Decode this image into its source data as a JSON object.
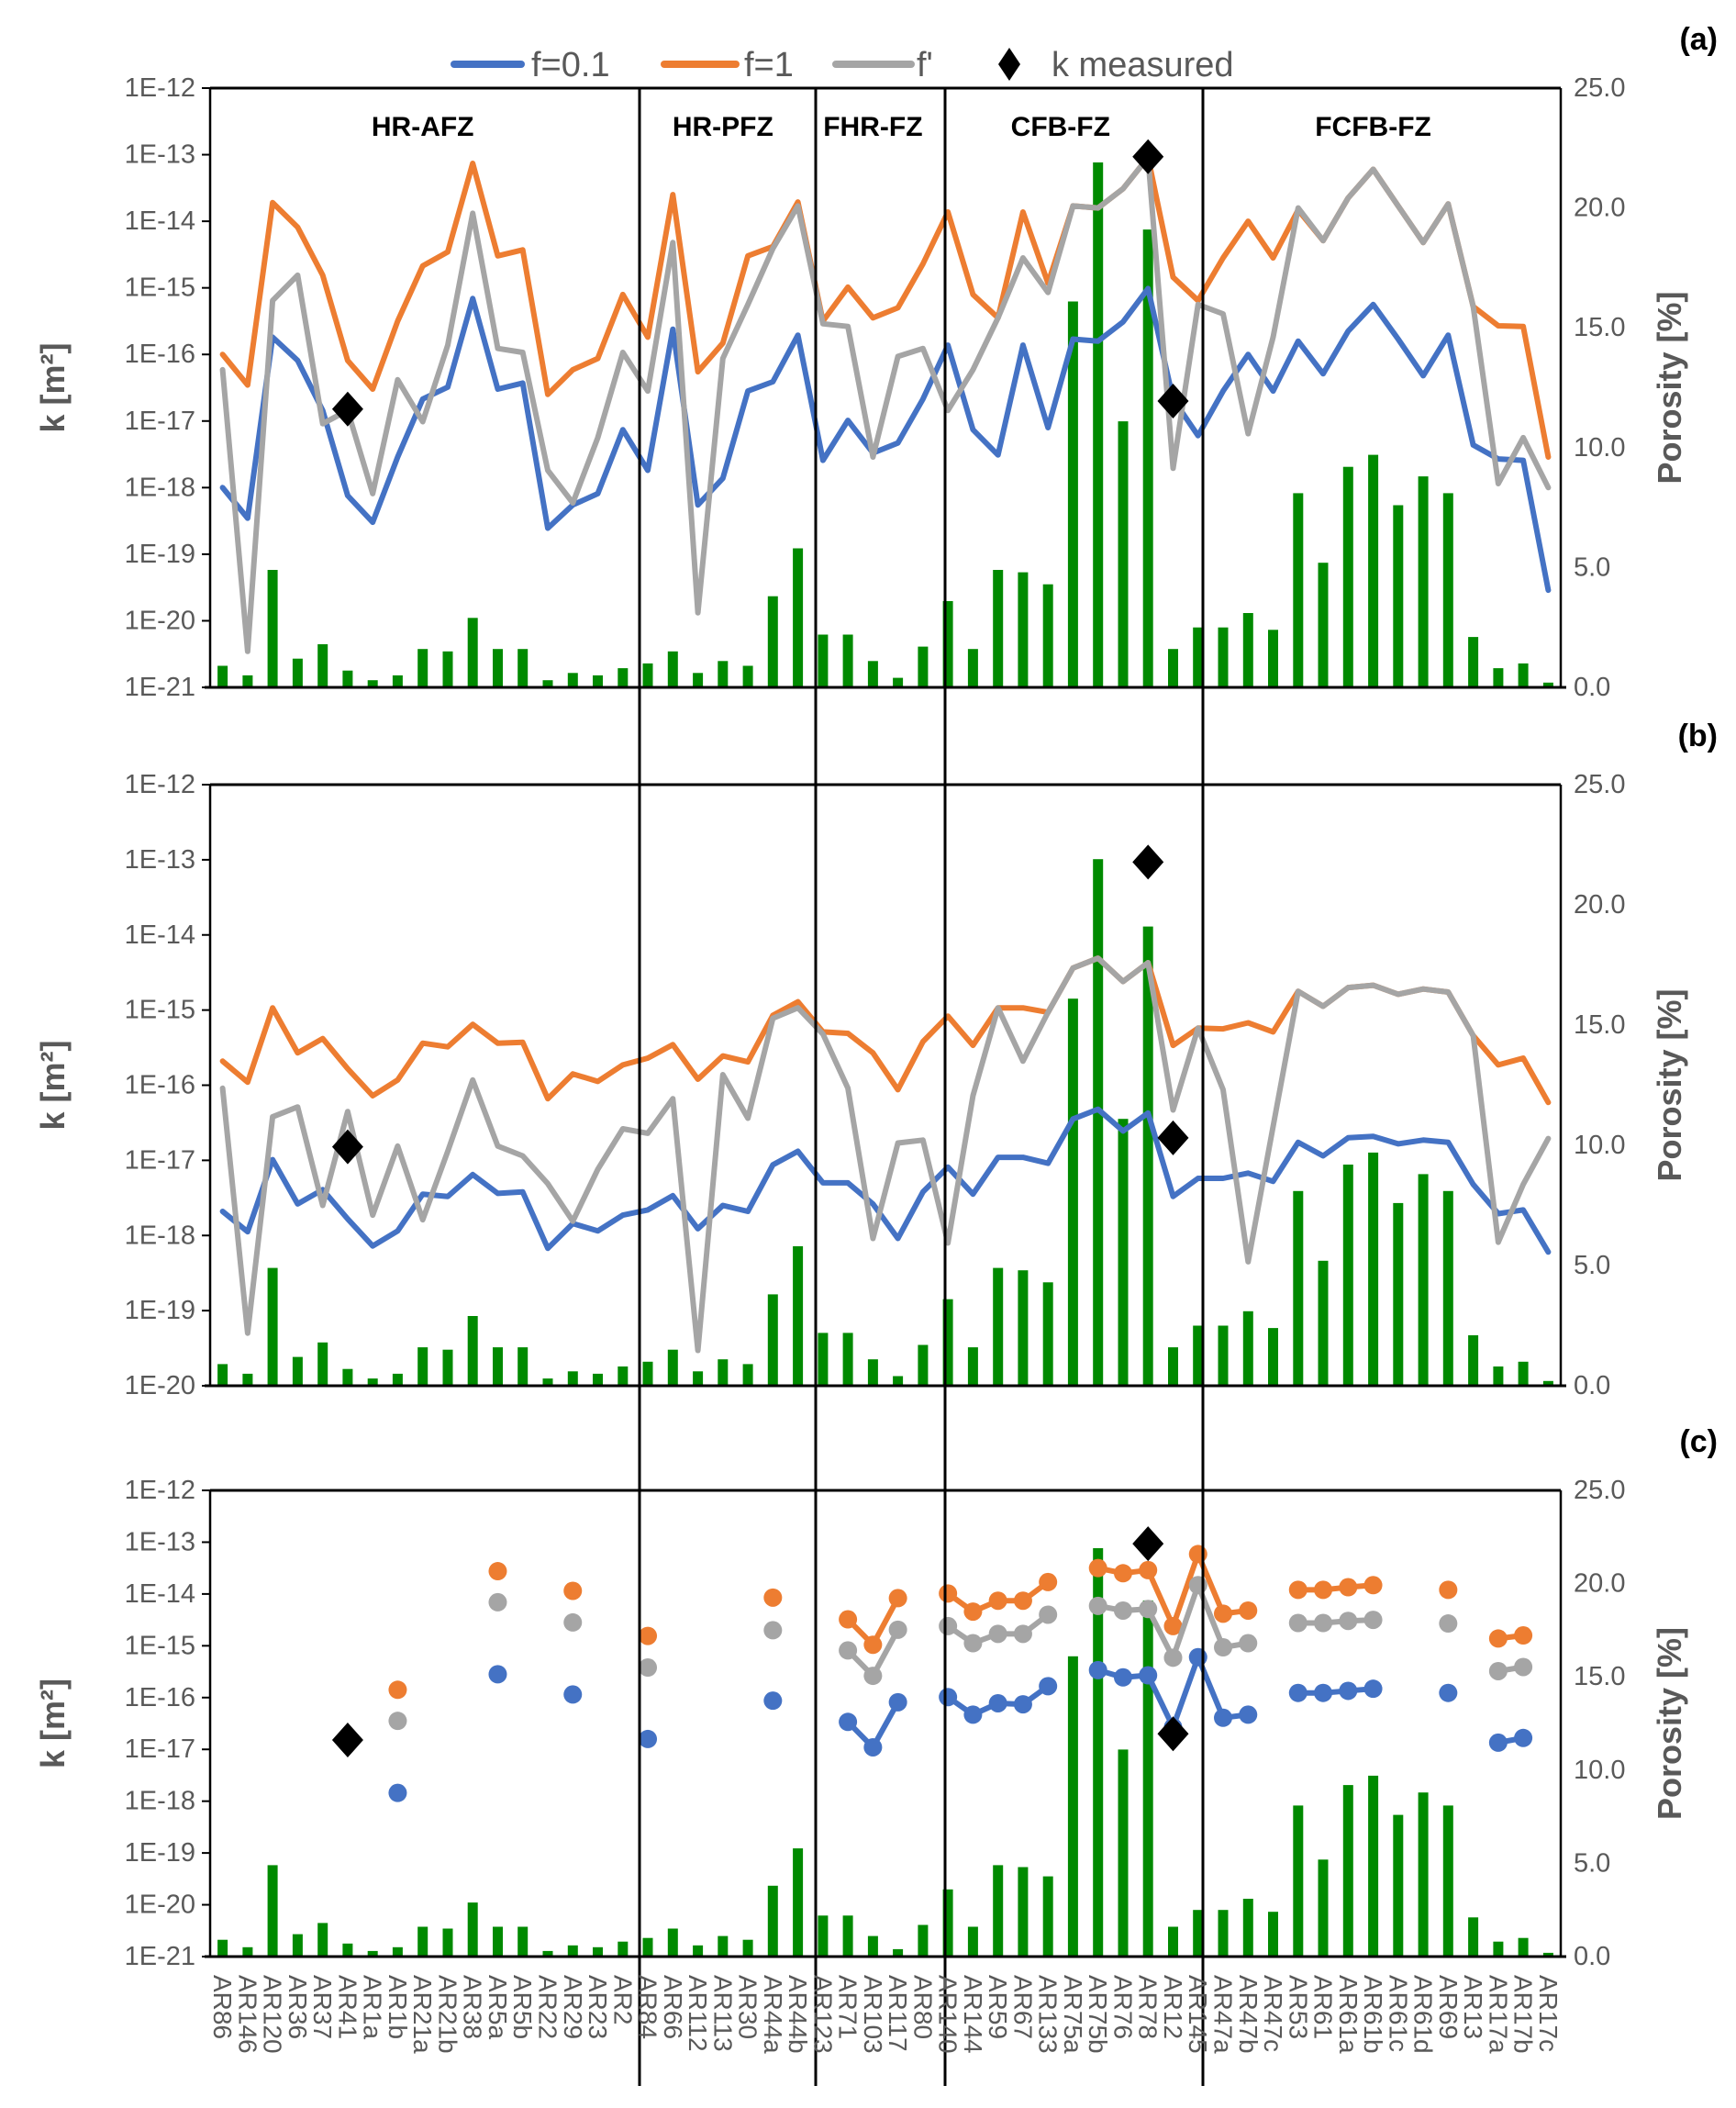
{
  "chart_data": {
    "type": "line",
    "colors": {
      "f01": "#4472C4",
      "f1": "#ED7D31",
      "fprime": "#A5A5A5",
      "porosity": "#008A00",
      "measured": "#000000"
    },
    "legend": [
      {
        "key": "f01",
        "label": "f=0.1"
      },
      {
        "key": "f1",
        "label": "f=1"
      },
      {
        "key": "fprime",
        "label": "f'"
      },
      {
        "key": "measured",
        "label": "k measured"
      }
    ],
    "categories": [
      "AR86",
      "AR146",
      "AR120",
      "AR36",
      "AR37",
      "AR41",
      "AR1a",
      "AR1b",
      "AR21a",
      "AR21b",
      "AR38",
      "AR5a",
      "AR5b",
      "AR22",
      "AR29",
      "AR23",
      "AR2",
      "AR84",
      "AR66",
      "AR112",
      "AR113",
      "AR30",
      "AR44a",
      "AR44b",
      "AR123",
      "AR71",
      "AR103",
      "AR117",
      "AR80",
      "AR140",
      "AR144",
      "AR59",
      "AR67",
      "AR133",
      "AR75a",
      "AR75b",
      "AR76",
      "AR78",
      "AR12",
      "AR145",
      "AR47a",
      "AR47b",
      "AR47c",
      "AR53",
      "AR61",
      "AR61a",
      "AR61b",
      "AR61c",
      "AR61d",
      "AR69",
      "AR13",
      "AR17a",
      "AR17b",
      "AR17c"
    ],
    "zones": [
      {
        "name": "HR-AFZ",
        "start": 0,
        "end": 16
      },
      {
        "name": "HR-PFZ",
        "start": 17,
        "end": 23
      },
      {
        "name": "FHR-FZ",
        "start": 24,
        "end": 28
      },
      {
        "name": "CFB-FZ",
        "start": 29,
        "end": 38
      },
      {
        "name": "FCFB-FZ",
        "start": 39,
        "end": 53
      }
    ],
    "ylabel": "k [m²]",
    "porosity": {
      "ylabel": "Porosity [%]",
      "ylim": [
        0,
        25
      ],
      "ticks": [
        "0.0",
        "5.0",
        "10.0",
        "15.0",
        "20.0",
        "25.0"
      ],
      "values": [
        0.9,
        0.5,
        4.9,
        1.2,
        1.8,
        0.7,
        0.3,
        0.5,
        1.6,
        1.5,
        2.9,
        1.6,
        1.6,
        0.3,
        0.6,
        0.5,
        0.8,
        1.0,
        1.5,
        0.6,
        1.1,
        0.9,
        3.8,
        5.8,
        2.2,
        2.2,
        1.1,
        0.4,
        1.7,
        3.6,
        1.6,
        4.9,
        4.8,
        4.3,
        16.1,
        21.9,
        11.1,
        19.1,
        1.6,
        2.5,
        2.5,
        3.1,
        2.4,
        8.1,
        5.2,
        9.2,
        9.7,
        7.6,
        8.8,
        8.1,
        2.1,
        0.8,
        1.0,
        0.2
      ]
    },
    "measured": [
      {
        "index": 5,
        "log10_k": -16.82
      },
      {
        "index": 37,
        "log10_k": -13.03
      },
      {
        "index": 38,
        "log10_k": -16.7
      }
    ],
    "panels": [
      {
        "label": "(a)",
        "mode": "line",
        "ylim_log10": [
          -21,
          -12
        ],
        "yticks": [
          "1E-12",
          "1E-13",
          "1E-14",
          "1E-15",
          "1E-16",
          "1E-17",
          "1E-18",
          "1E-19",
          "1E-20",
          "1E-21"
        ],
        "series": [
          {
            "key": "f01",
            "name": "f=0.1",
            "log10_k": [
              -18.0,
              -18.46,
              -15.74,
              -16.09,
              -16.84,
              -18.12,
              -18.52,
              -17.54,
              -16.67,
              -16.49,
              -15.16,
              -16.52,
              -16.43,
              -18.61,
              -18.26,
              -18.09,
              -17.13,
              -17.74,
              -15.62,
              -18.26,
              -17.86,
              -16.55,
              -16.41,
              -15.71,
              -17.59,
              -16.99,
              -17.48,
              -17.33,
              -16.67,
              -15.86,
              -17.13,
              -17.51,
              -15.86,
              -17.1,
              -15.77,
              -15.8,
              -15.51,
              -15.01,
              -16.67,
              -17.22,
              -16.55,
              -16.0,
              -16.55,
              -15.8,
              -16.29,
              -15.65,
              -15.25,
              -15.77,
              -16.32,
              -15.71,
              -17.36,
              -17.57,
              -17.59,
              -19.54
            ]
          },
          {
            "key": "f1",
            "name": "f=1",
            "log10_k": [
              -16.0,
              -16.46,
              -13.72,
              -14.09,
              -14.81,
              -16.09,
              -16.52,
              -15.5,
              -14.67,
              -14.46,
              -13.13,
              -14.52,
              -14.43,
              -16.6,
              -16.23,
              -16.06,
              -15.1,
              -15.74,
              -13.6,
              -16.26,
              -15.83,
              -14.52,
              -14.38,
              -13.71,
              -15.5,
              -14.99,
              -15.45,
              -15.3,
              -14.64,
              -13.86,
              -15.1,
              -15.45,
              -13.86,
              -14.93,
              -13.77,
              -13.8,
              -13.51,
              -13.04,
              -14.84,
              -15.19,
              -14.55,
              -14.0,
              -14.55,
              -13.83,
              -14.29,
              -13.65,
              -13.22,
              -13.77,
              -14.32,
              -13.74,
              -15.28,
              -15.57,
              -15.58,
              -17.54
            ]
          },
          {
            "key": "fprime",
            "name": "f'",
            "log10_k": [
              -16.23,
              -20.46,
              -15.19,
              -14.81,
              -17.04,
              -16.84,
              -18.09,
              -16.38,
              -17.01,
              -15.86,
              -13.88,
              -15.91,
              -15.97,
              -17.74,
              -18.23,
              -17.25,
              -15.97,
              -16.55,
              -14.32,
              -19.88,
              -16.06,
              -15.25,
              -14.41,
              -13.77,
              -15.54,
              -15.58,
              -17.54,
              -16.03,
              -15.91,
              -16.84,
              -16.23,
              -15.45,
              -14.55,
              -15.07,
              -13.77,
              -13.8,
              -13.51,
              -13.04,
              -17.71,
              -15.25,
              -15.39,
              -17.19,
              -15.74,
              -13.8,
              -14.29,
              -13.65,
              -13.22,
              -13.77,
              -14.32,
              -13.74,
              -15.28,
              -17.94,
              -17.25,
              -18.0
            ]
          }
        ]
      },
      {
        "label": "(b)",
        "mode": "line",
        "ylim_log10": [
          -20,
          -12
        ],
        "yticks": [
          "1E-12",
          "1E-13",
          "1E-14",
          "1E-15",
          "1E-16",
          "1E-17",
          "1E-18",
          "1E-19",
          "1E-20"
        ],
        "series": [
          {
            "key": "f01",
            "name": "f=0.1",
            "log10_k": [
              -17.68,
              -17.95,
              -16.99,
              -17.58,
              -17.39,
              -17.78,
              -18.14,
              -17.94,
              -17.45,
              -17.48,
              -17.19,
              -17.44,
              -17.42,
              -18.17,
              -17.84,
              -17.94,
              -17.73,
              -17.66,
              -17.47,
              -17.91,
              -17.6,
              -17.68,
              -17.06,
              -16.88,
              -17.3,
              -17.3,
              -17.58,
              -18.04,
              -17.42,
              -17.09,
              -17.45,
              -16.96,
              -16.96,
              -17.04,
              -16.45,
              -16.32,
              -16.61,
              -16.37,
              -17.48,
              -17.24,
              -17.24,
              -17.17,
              -17.28,
              -16.76,
              -16.94,
              -16.7,
              -16.68,
              -16.78,
              -16.73,
              -16.76,
              -17.32,
              -17.71,
              -17.66,
              -18.22
            ]
          },
          {
            "key": "f1",
            "name": "f=1",
            "log10_k": [
              -15.68,
              -15.96,
              -14.97,
              -15.57,
              -15.38,
              -15.78,
              -16.14,
              -15.93,
              -15.44,
              -15.49,
              -15.19,
              -15.44,
              -15.43,
              -16.18,
              -15.85,
              -15.95,
              -15.73,
              -15.64,
              -15.46,
              -15.92,
              -15.61,
              -15.69,
              -15.07,
              -14.89,
              -15.29,
              -15.31,
              -15.57,
              -16.06,
              -15.42,
              -15.08,
              -15.47,
              -14.97,
              -14.97,
              -15.03,
              -14.44,
              -14.31,
              -14.62,
              -14.37,
              -15.47,
              -15.24,
              -15.25,
              -15.17,
              -15.29,
              -14.75,
              -14.95,
              -14.7,
              -14.67,
              -14.79,
              -14.72,
              -14.76,
              -15.34,
              -15.73,
              -15.64,
              -16.23
            ]
          },
          {
            "key": "fprime",
            "name": "f'",
            "log10_k": [
              -16.04,
              -19.3,
              -16.42,
              -16.29,
              -17.6,
              -16.35,
              -17.73,
              -16.81,
              -17.79,
              -16.88,
              -15.93,
              -16.81,
              -16.94,
              -17.31,
              -17.81,
              -17.12,
              -16.58,
              -16.64,
              -16.18,
              -19.53,
              -15.86,
              -16.44,
              -15.11,
              -14.97,
              -15.32,
              -16.04,
              -18.04,
              -16.77,
              -16.73,
              -18.1,
              -16.14,
              -14.97,
              -15.68,
              -15.03,
              -14.44,
              -14.31,
              -14.62,
              -14.37,
              -16.33,
              -15.24,
              -16.06,
              -18.35,
              -16.55,
              -14.75,
              -14.95,
              -14.7,
              -14.67,
              -14.79,
              -14.72,
              -14.76,
              -15.34,
              -18.09,
              -17.32,
              -16.71
            ]
          }
        ]
      },
      {
        "label": "(c)",
        "mode": "points",
        "ylim_log10": [
          -21,
          -12
        ],
        "yticks": [
          "1E-12",
          "1E-13",
          "1E-14",
          "1E-15",
          "1E-16",
          "1E-17",
          "1E-18",
          "1E-19",
          "1E-20",
          "1E-21"
        ],
        "series": [
          {
            "key": "f01",
            "name": "f=0.1",
            "log10_k": [
              null,
              null,
              null,
              null,
              null,
              null,
              null,
              -17.84,
              null,
              null,
              null,
              -15.55,
              null,
              null,
              -15.94,
              null,
              null,
              -16.8,
              null,
              null,
              null,
              null,
              -16.06,
              null,
              null,
              -16.47,
              -16.96,
              -16.09,
              null,
              -15.99,
              -16.33,
              -16.11,
              -16.13,
              -15.78,
              null,
              -15.47,
              -15.61,
              -15.57,
              -16.57,
              -15.22,
              -16.39,
              -16.33,
              null,
              -15.91,
              -15.91,
              -15.87,
              -15.83,
              null,
              null,
              -15.91,
              null,
              -16.87,
              -16.78,
              null
            ]
          },
          {
            "key": "f1",
            "name": "f=1",
            "log10_k": [
              null,
              null,
              null,
              null,
              null,
              null,
              null,
              -15.85,
              null,
              null,
              null,
              -13.56,
              null,
              null,
              -13.94,
              null,
              null,
              -14.81,
              null,
              null,
              null,
              null,
              -14.07,
              null,
              null,
              -14.49,
              -14.98,
              -14.08,
              null,
              -13.99,
              -14.34,
              -14.13,
              -14.13,
              -13.77,
              null,
              -13.5,
              -13.6,
              -13.54,
              -14.62,
              -13.23,
              -14.38,
              -14.32,
              null,
              -13.92,
              -13.92,
              -13.87,
              -13.83,
              null,
              null,
              -13.92,
              null,
              -14.86,
              -14.8,
              null
            ]
          },
          {
            "key": "fprime",
            "name": "f'",
            "log10_k": [
              null,
              null,
              null,
              null,
              null,
              null,
              null,
              -16.45,
              null,
              null,
              null,
              -14.16,
              null,
              null,
              -14.55,
              null,
              null,
              -15.42,
              null,
              null,
              null,
              null,
              -14.7,
              null,
              null,
              -15.09,
              -15.58,
              -14.69,
              null,
              -14.62,
              -14.95,
              -14.77,
              -14.77,
              -14.4,
              null,
              -14.23,
              -14.32,
              -14.29,
              -15.23,
              -13.83,
              -15.03,
              -14.95,
              null,
              -14.56,
              -14.56,
              -14.52,
              -14.5,
              null,
              null,
              -14.57,
              null,
              -15.49,
              -15.41,
              null
            ]
          }
        ]
      }
    ]
  }
}
